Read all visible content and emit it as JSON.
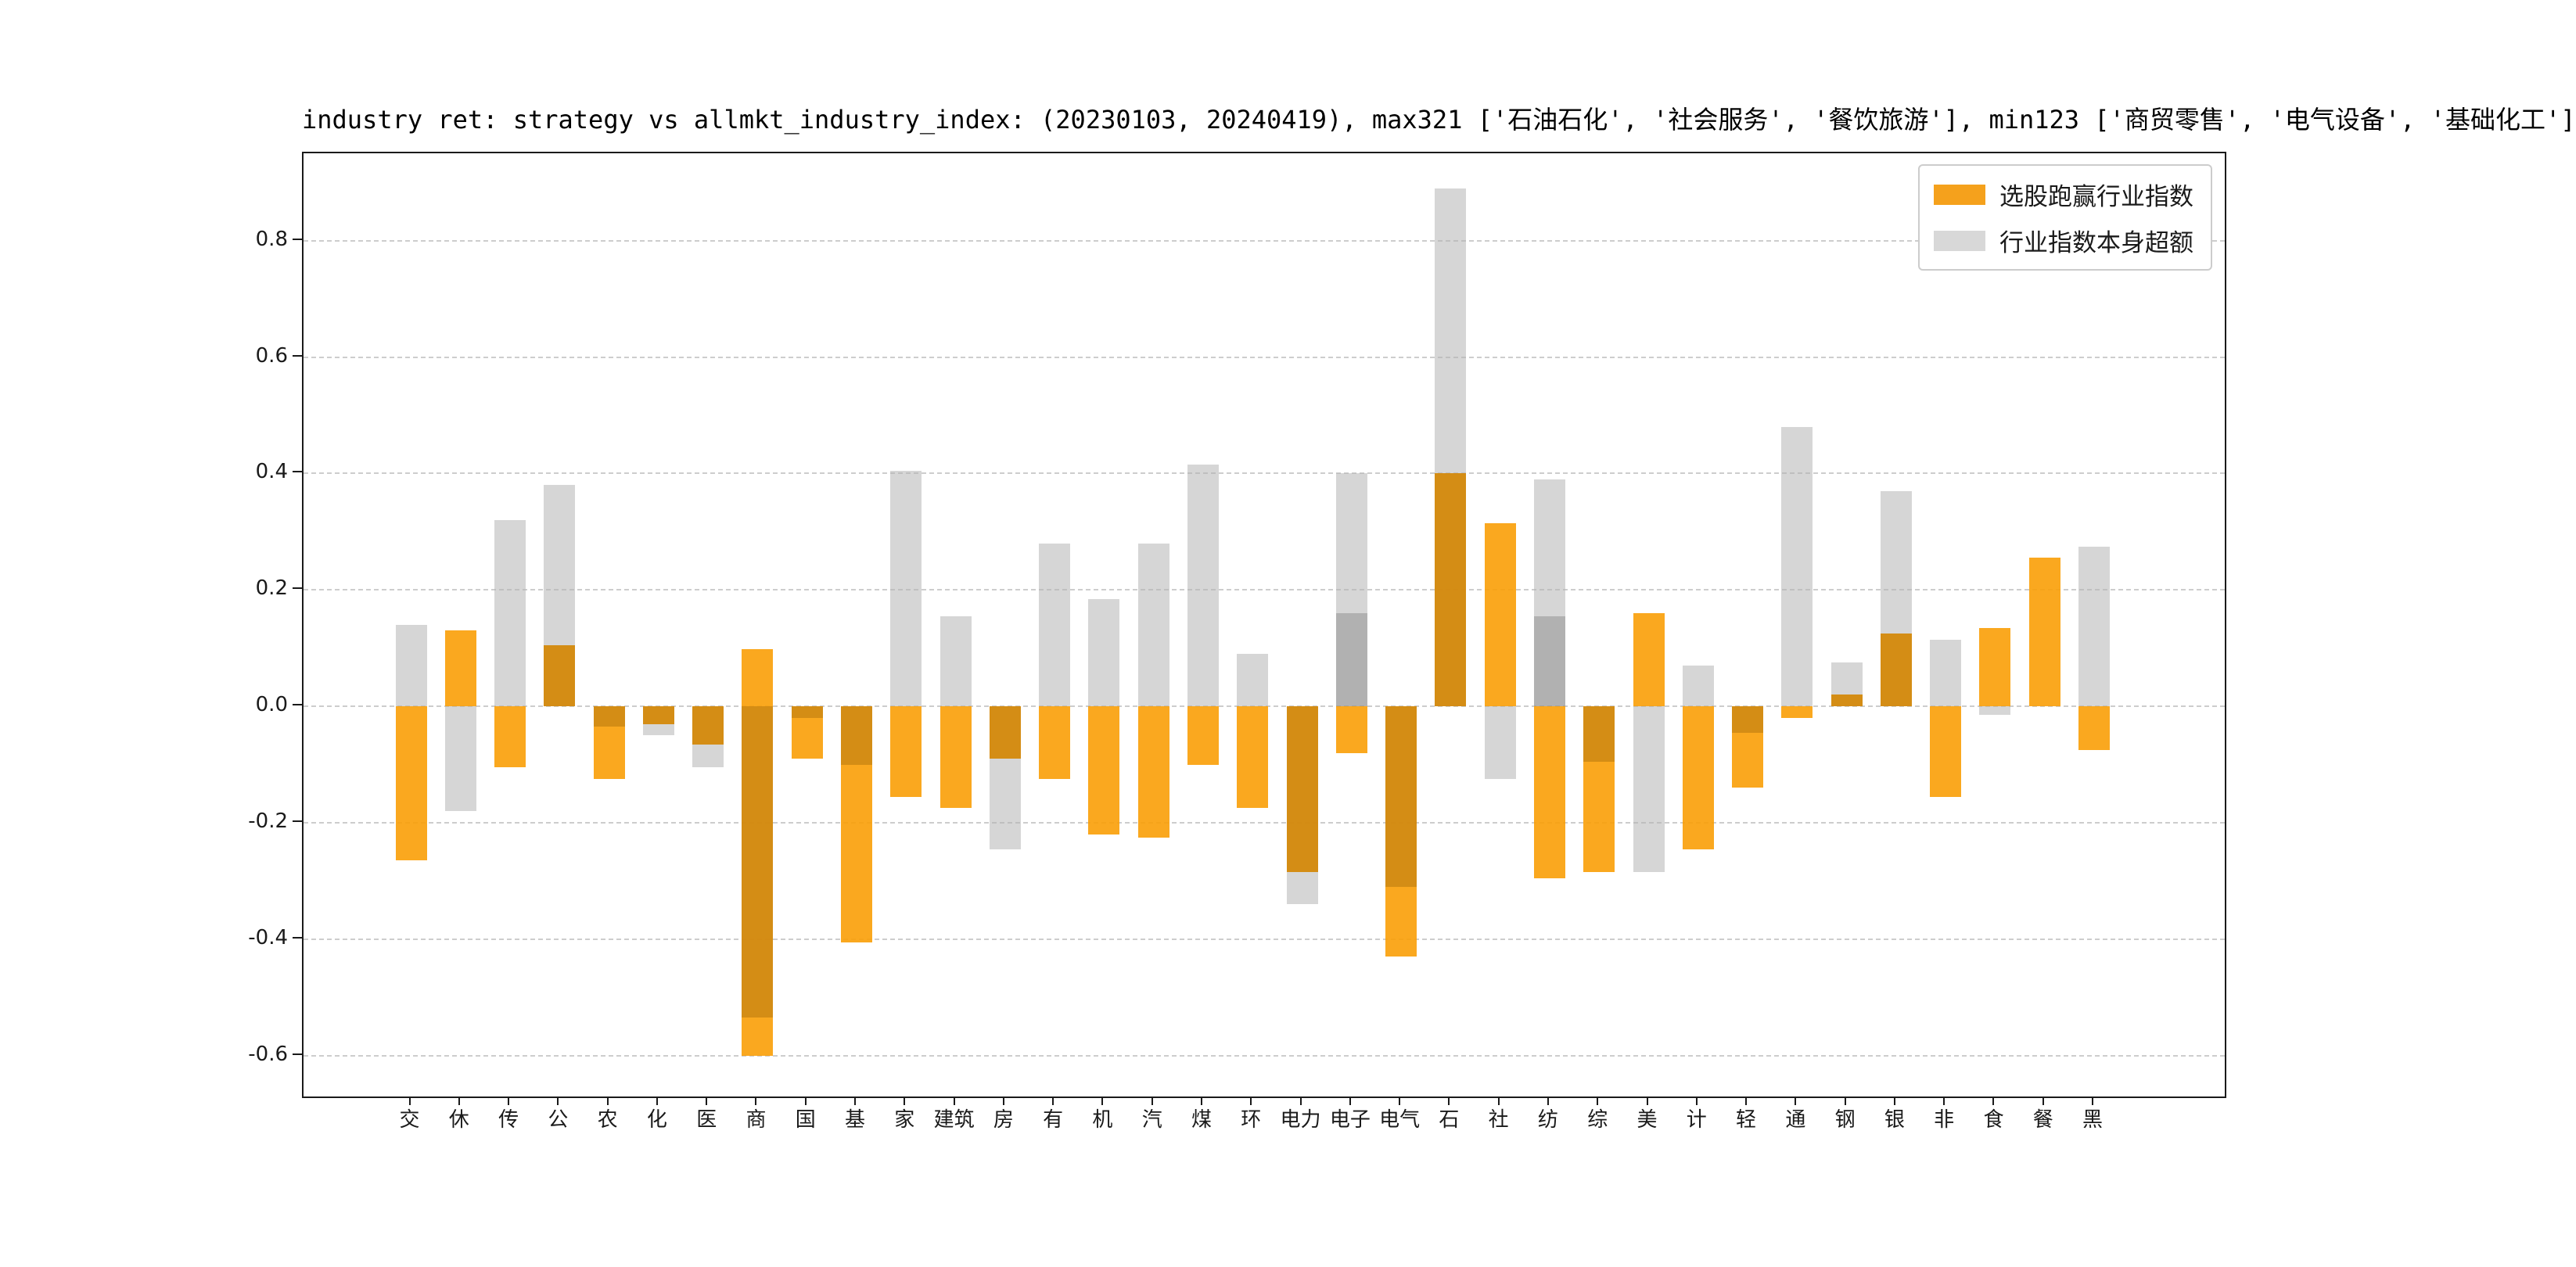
{
  "title": "industry ret: strategy vs allmkt_industry_index: (20230103, 20240419), max321 ['石油石化', '社会服务', '餐饮旅游'], min123 ['商贸零售', '电气设备', '基础化工']",
  "legend": {
    "items": [
      {
        "label": "选股跑赢行业指数",
        "color": "#f5a11c"
      },
      {
        "label": "行业指数本身超额",
        "color": "#d8d8d8"
      }
    ],
    "position": "upper right"
  },
  "colors": {
    "orange_bar": "rgba(249,158,7,0.9)",
    "gray_bar": "rgba(181,181,181,0.55)",
    "gray_dark_band": "rgba(110,110,110,0.35)",
    "overlap_shade": "rgba(80,50,0,0.20)",
    "grid": "#cdcdcd"
  },
  "chart_data": {
    "type": "bar",
    "title": "industry ret: strategy vs allmkt_industry_index: (20230103, 20240419), max321 ['石油石化', '社会服务', '餐饮旅游'], min123 ['商贸零售', '电气设备', '基础化工']",
    "xlabel": "",
    "ylabel": "",
    "ylim": [
      -0.67,
      0.95
    ],
    "grid": "horizontal dashed",
    "legend_position": "upper right",
    "yticks": [
      {
        "v": 0.8,
        "label": "0.8"
      },
      {
        "v": 0.6,
        "label": "0.6"
      },
      {
        "v": 0.4,
        "label": "0.4"
      },
      {
        "v": 0.2,
        "label": "0.2"
      },
      {
        "v": 0.0,
        "label": "0.0"
      },
      {
        "v": -0.2,
        "label": "-0.2"
      },
      {
        "v": -0.4,
        "label": "-0.4"
      },
      {
        "v": -0.6,
        "label": "-0.6"
      }
    ],
    "categories": [
      "交",
      "休",
      "传",
      "公",
      "农",
      "化",
      "医",
      "商",
      "国",
      "基",
      "家",
      "建筑",
      "房",
      "有",
      "机",
      "汽",
      "煤",
      "环",
      "电力",
      "电子",
      "电气",
      "石",
      "社",
      "纺",
      "综",
      "美",
      "计",
      "轻",
      "通",
      "钢",
      "银",
      "非",
      "食",
      "餐",
      "黑"
    ],
    "series": [
      {
        "name": "选股跑赢行业指数",
        "color": "orange",
        "values": [
          -0.265,
          0.13,
          -0.105,
          0.105,
          -0.125,
          -0.03,
          -0.065,
          -0.6,
          -0.09,
          -0.405,
          -0.155,
          -0.175,
          -0.09,
          -0.125,
          -0.22,
          -0.225,
          -0.1,
          -0.175,
          -0.285,
          -0.08,
          -0.43,
          0.4,
          0.315,
          -0.295,
          -0.285,
          0.16,
          -0.245,
          -0.14,
          -0.02,
          0.02,
          0.125,
          -0.155,
          0.135,
          0.255,
          -0.075
        ]
      },
      {
        "name": "行业指数本身超额",
        "color": "lightgray",
        "values": [
          0.14,
          -0.18,
          0.32,
          0.38,
          -0.035,
          -0.05,
          -0.105,
          -0.535,
          -0.02,
          -0.1,
          0.405,
          0.155,
          -0.245,
          0.28,
          0.185,
          0.28,
          0.415,
          0.09,
          -0.34,
          0.4,
          -0.31,
          0.89,
          -0.125,
          0.39,
          -0.095,
          -0.285,
          0.07,
          -0.045,
          0.48,
          0.075,
          0.37,
          0.115,
          -0.015,
          0.0,
          0.275
        ]
      }
    ],
    "extra_bars": [
      {
        "category": "商",
        "series": "选股跑赢行业指数",
        "value": 0.098
      },
      {
        "category": "电子",
        "series": "行业指数本身超额",
        "value": 0.16
      },
      {
        "category": "纺",
        "series": "行业指数本身超额",
        "value": 0.155
      }
    ]
  }
}
